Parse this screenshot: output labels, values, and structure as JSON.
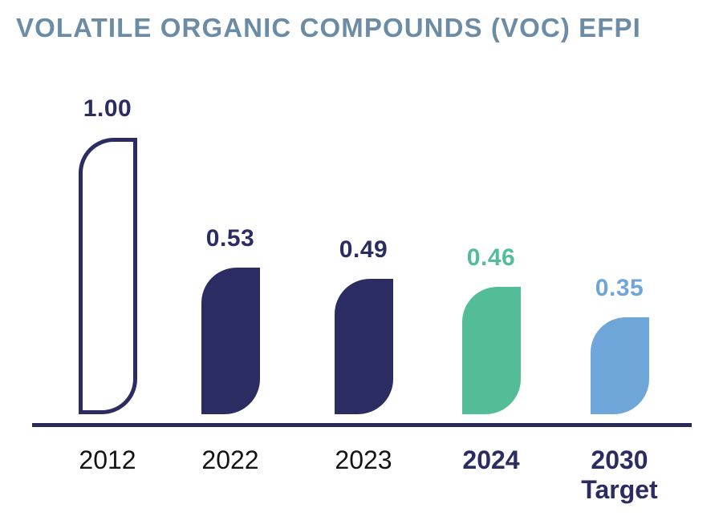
{
  "title": {
    "text": "VOLATILE ORGANIC COMPOUNDS (VOC) EFPI"
  },
  "colors": {
    "background": "#ffffff",
    "title": "#6c8ca6",
    "navy": "#2b2d62",
    "green": "#52bd96",
    "blue": "#6fa6d9",
    "axis": "#272a5a",
    "year_text": "#141414"
  },
  "chart_data": {
    "type": "bar",
    "title": "VOLATILE ORGANIC COMPOUNDS (VOC) EFPI",
    "categories": [
      "2012",
      "2022",
      "2023",
      "2024",
      "2030 Target"
    ],
    "values": [
      1.0,
      0.53,
      0.49,
      0.46,
      0.35
    ],
    "value_labels": [
      "1.00",
      "0.53",
      "0.49",
      "0.46",
      "0.35"
    ],
    "xlabel": "",
    "ylabel": "",
    "ylim": [
      0,
      1.0
    ],
    "grid": false,
    "legend": "none",
    "bars": [
      {
        "category": "2012",
        "value": 1.0,
        "label": "1.00",
        "style": "outline",
        "color": "#2b2d62",
        "label_color": "#2b2d62",
        "category_color": "#141414",
        "category_bold": false
      },
      {
        "category": "2022",
        "value": 0.53,
        "label": "0.53",
        "style": "filled",
        "color": "#2b2d62",
        "label_color": "#2b2d62",
        "category_color": "#141414",
        "category_bold": false
      },
      {
        "category": "2023",
        "value": 0.49,
        "label": "0.49",
        "style": "filled",
        "color": "#2b2d62",
        "label_color": "#2b2d62",
        "category_color": "#141414",
        "category_bold": false
      },
      {
        "category": "2024",
        "value": 0.46,
        "label": "0.46",
        "style": "filled",
        "color": "#52bd96",
        "label_color": "#52bd96",
        "category_color": "#2b2d62",
        "category_bold": true
      },
      {
        "category": "2030 Target",
        "value": 0.35,
        "label": "0.35",
        "style": "filled",
        "color": "#6fa6d9",
        "label_color": "#6fa6d9",
        "category_color": "#2b2d62",
        "category_bold": true
      }
    ]
  }
}
